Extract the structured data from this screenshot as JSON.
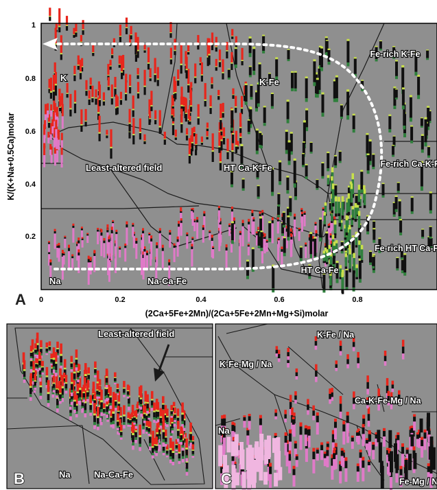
{
  "colors": {
    "background": "#8f8f8f",
    "border": "#000000",
    "field_line": "#1a1a1a",
    "trend_arrow": "#ffffff",
    "altered_red": "#e8261c",
    "mixed_black": "#101010",
    "fresh_green": "#2f7f3c",
    "yellow_green": "#c8e04a",
    "pink": "#e07ac8",
    "light_pink": "#f0b6e0"
  },
  "chart_data": [
    {
      "panel": "A",
      "type": "scatter",
      "xlabel": "(2Ca+5Fe+2Mn)/(2Ca+5Fe+2Mn+Mg+Si)molar",
      "ylabel": "K/(K+Na+0.5Ca)molar",
      "xlim": [
        0,
        1.0
      ],
      "ylim": [
        0,
        1.0
      ],
      "x_ticks": [
        "0",
        "0.2",
        "0.4",
        "0.6",
        "0.8"
      ],
      "y_ticks": [
        "0.2",
        "0.4",
        "0.6",
        "0.8",
        "1"
      ],
      "field_labels": [
        "K",
        "K-Fe",
        "Fe-rich K-Fe",
        "Least-altered field",
        "HT Ca-K-Fe",
        "Fe-rich Ca-K-Fe",
        "Na",
        "Na-Ca-Fe",
        "HT Ca-Fe",
        "Fe-rich HT Ca-Fe"
      ],
      "grid": false,
      "trend_arrow": "white dotted arrow looping from the Na corner through the Fe-rich fields to the K corner"
    },
    {
      "panel": "B",
      "type": "scatter",
      "field_labels": [
        "Least-altered field",
        "Na",
        "Na-Ca-Fe"
      ]
    },
    {
      "panel": "C",
      "type": "scatter",
      "field_labels": [
        "K-Fe / Na",
        "K-Fe-Mg / Na",
        "Ca-K-Fe-Mg / Na",
        "Na",
        "Fe-Mg / Na"
      ]
    }
  ],
  "panels": {
    "A": {
      "letter": "A"
    },
    "B": {
      "letter": "B"
    },
    "C": {
      "letter": "C"
    }
  }
}
